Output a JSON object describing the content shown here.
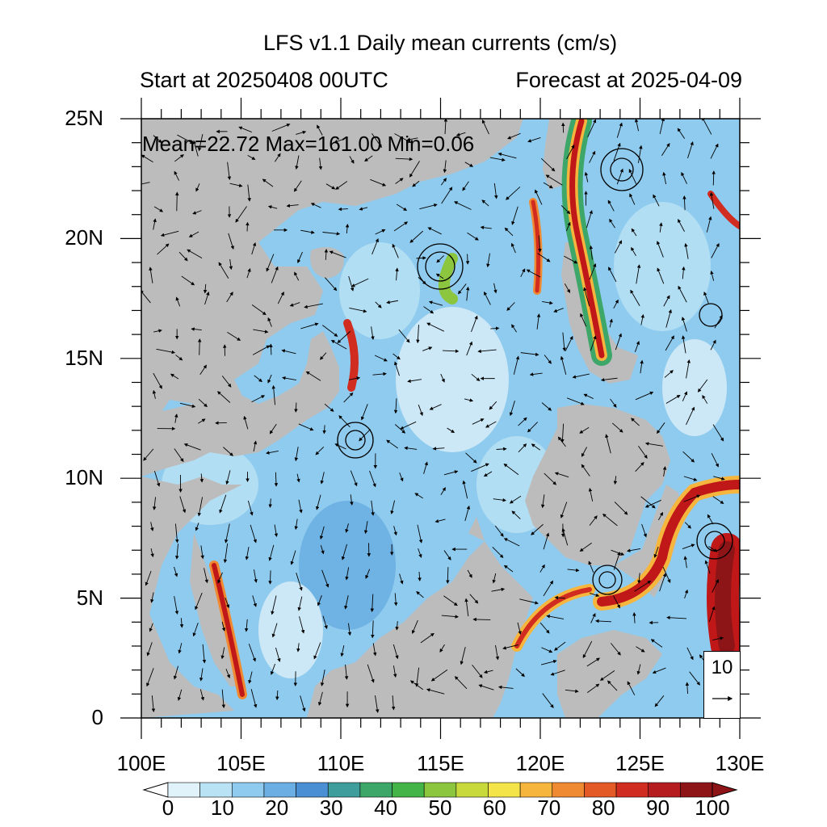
{
  "header": {
    "title": "LFS v1.1 Daily mean currents (cm/s)",
    "start_text": "Start at 20250408 00UTC",
    "forecast_text": "Forecast at 2025-04-09"
  },
  "stats_text": "Mean=22.72  Max=161.00  Min=0.06",
  "axes": {
    "lat_labels": [
      "25N",
      "20N",
      "15N",
      "10N",
      "5N",
      "0"
    ],
    "lon_labels": [
      "100E",
      "105E",
      "110E",
      "115E",
      "120E",
      "125E",
      "130E"
    ],
    "lon_range": [
      100,
      130
    ],
    "lat_range": [
      0,
      25
    ]
  },
  "reference_vector": {
    "value": "10"
  },
  "colorbar": {
    "labels": [
      "0",
      "10",
      "20",
      "30",
      "40",
      "50",
      "60",
      "70",
      "80",
      "90",
      "100"
    ],
    "colors": [
      "#e0f3fb",
      "#b9e2f5",
      "#8fcbee",
      "#6aaee3",
      "#4a8fd4",
      "#3f9d9b",
      "#3da76a",
      "#44b348",
      "#8cc63e",
      "#c8d93c",
      "#f4e44a",
      "#f6b53d",
      "#f08a32",
      "#e45a26",
      "#d12c20",
      "#b51c1f",
      "#8e1517"
    ],
    "min_label_value": 0,
    "max_label_value": 100
  },
  "colors": {
    "land": "#bcbcbc",
    "ocean_low": "#d7edf8",
    "ocean_mid": "#7fb9e4",
    "jet_high": "#c01818"
  }
}
